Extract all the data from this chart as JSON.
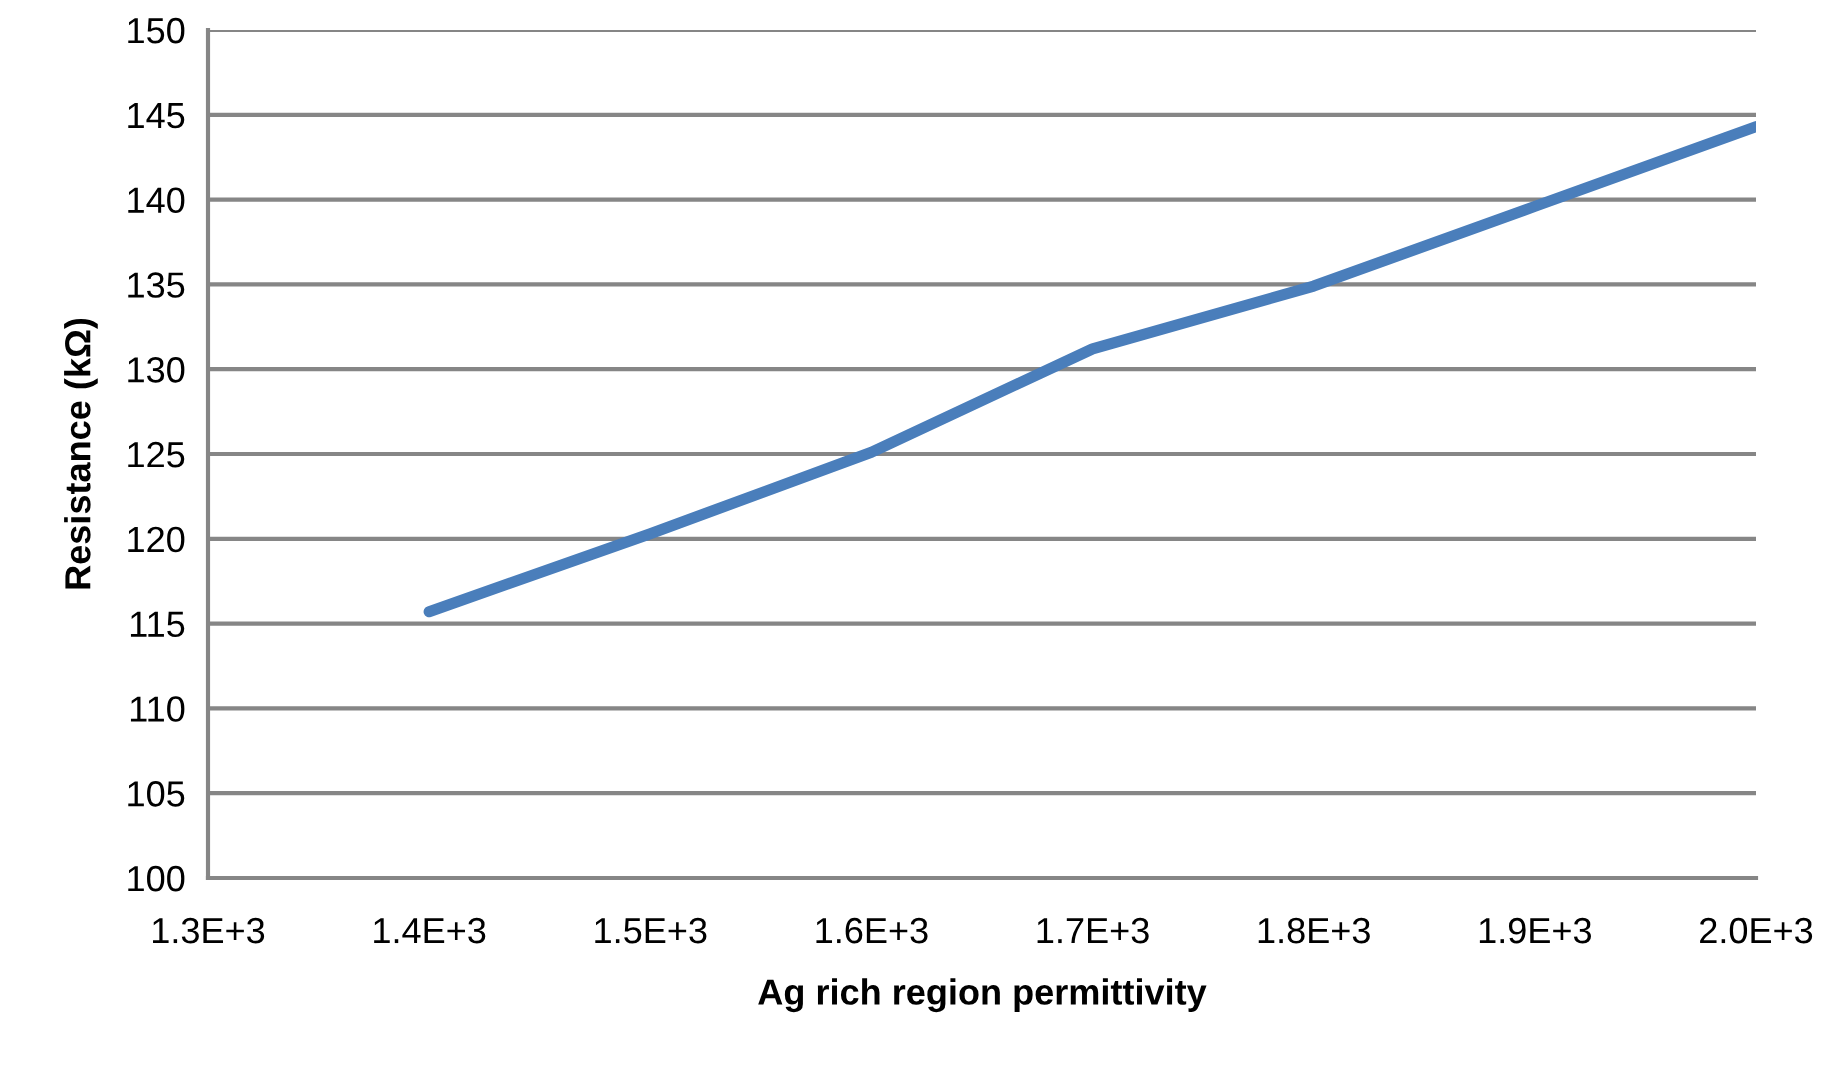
{
  "chart_data": {
    "type": "line",
    "xlabel": "Ag rich region permittivity",
    "ylabel": "Resistance (kΩ)",
    "x": [
      1400,
      1500,
      1600,
      1700,
      1800,
      1900,
      2000
    ],
    "series": [
      {
        "color": "#4a7ebb",
        "values": [
          115.7,
          120.3,
          125.1,
          131.2,
          134.9,
          139.6,
          144.3
        ]
      }
    ],
    "xlim": [
      1300,
      2000
    ],
    "xticks": [
      {
        "value": 1300,
        "label": "1.3E+3"
      },
      {
        "value": 1400,
        "label": "1.4E+3"
      },
      {
        "value": 1500,
        "label": "1.5E+3"
      },
      {
        "value": 1600,
        "label": "1.6E+3"
      },
      {
        "value": 1700,
        "label": "1.7E+3"
      },
      {
        "value": 1800,
        "label": "1.8E+3"
      },
      {
        "value": 1900,
        "label": "1.9E+3"
      },
      {
        "value": 2000,
        "label": "2.0E+3"
      }
    ],
    "ylim": [
      100,
      150
    ],
    "yticks": [
      100,
      105,
      110,
      115,
      120,
      125,
      130,
      135,
      140,
      145,
      150
    ],
    "grid": "y",
    "marker": "none",
    "line_style": "solid"
  }
}
